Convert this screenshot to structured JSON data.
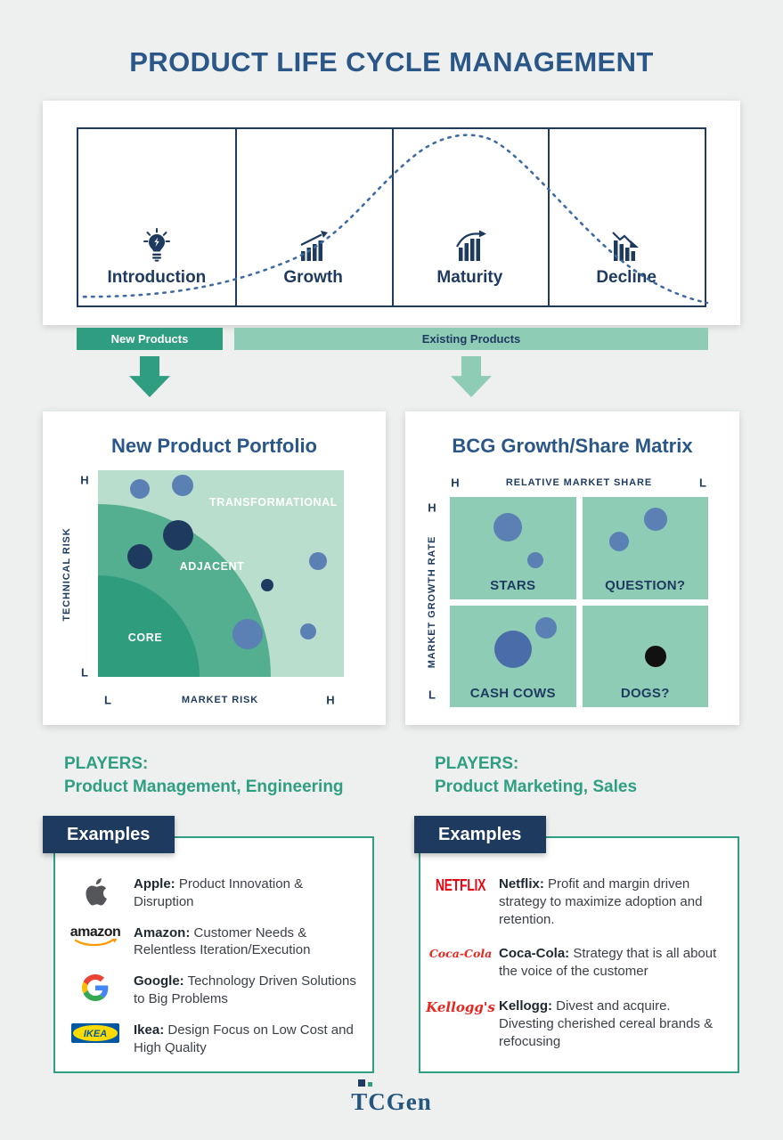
{
  "title": "PRODUCT LIFE CYCLE MANAGEMENT",
  "colors": {
    "title_blue": "#2a5788",
    "navy": "#1e3a5f",
    "teal_dark": "#2f9e80",
    "green_light": "#8fccb6",
    "bubble_blue": "#5b80b4",
    "players_teal": "#2f9e83",
    "netflix_red": "#e50914",
    "brand_red": "#e6261f"
  },
  "lifecycle": {
    "stages": [
      {
        "label": "Introduction"
      },
      {
        "label": "Growth"
      },
      {
        "label": "Maturity"
      },
      {
        "label": "Decline"
      }
    ],
    "bands": {
      "new": "New Products",
      "existing": "Existing Products"
    }
  },
  "portfolio": {
    "title": "New Product Portfolio",
    "zone_transformational": "TRANSFORMATIONAL",
    "zone_adjacent": "ADJACENT",
    "zone_core": "CORE",
    "y_axis": "TECHNICAL RISK",
    "x_axis": "MARKET RISK",
    "y_top": "H",
    "y_bottom": "L",
    "x_left": "L",
    "x_right": "H",
    "bubbles": [
      {
        "x": 17,
        "y": 9,
        "r": 11,
        "color": "#5b80b4"
      },
      {
        "x": 34.5,
        "y": 7.5,
        "r": 12,
        "color": "#5b80b4"
      },
      {
        "x": 32.5,
        "y": 31.5,
        "r": 17,
        "color": "#1f3a5f"
      },
      {
        "x": 17,
        "y": 42,
        "r": 14,
        "color": "#1f3a5f"
      },
      {
        "x": 89.5,
        "y": 44,
        "r": 10,
        "color": "#5b80b4"
      },
      {
        "x": 69,
        "y": 55.5,
        "r": 7,
        "color": "#1f3a5f"
      },
      {
        "x": 61,
        "y": 79.5,
        "r": 17,
        "color": "#5b80b4"
      },
      {
        "x": 85.5,
        "y": 78,
        "r": 9,
        "color": "#5b80b4"
      }
    ]
  },
  "bcg": {
    "title": "BCG Growth/Share Matrix",
    "top_axis": "RELATIVE MARKET SHARE",
    "left_axis": "MARKET GROWTH RATE",
    "top_left_mark": "H",
    "top_right_mark": "L",
    "left_top_mark": "H",
    "left_bottom_mark": "L",
    "quadrants": [
      {
        "label": "STARS",
        "bubbles": [
          {
            "x": 46,
            "y": 30,
            "r": 16,
            "color": "#5b80b4"
          },
          {
            "x": 68,
            "y": 62,
            "r": 9,
            "color": "#5b80b4"
          }
        ]
      },
      {
        "label": "QUESTION?",
        "bubbles": [
          {
            "x": 58,
            "y": 22,
            "r": 13,
            "color": "#5b80b4"
          },
          {
            "x": 29,
            "y": 44,
            "r": 11,
            "color": "#5b80b4"
          }
        ]
      },
      {
        "label": "CASH COWS",
        "bubbles": [
          {
            "x": 50,
            "y": 43,
            "r": 21,
            "color": "#4a6ca8"
          },
          {
            "x": 76,
            "y": 22,
            "r": 12,
            "color": "#5b80b4"
          }
        ]
      },
      {
        "label": "DOGS?",
        "bubbles": [
          {
            "x": 58,
            "y": 50,
            "r": 12,
            "color": "#111111"
          }
        ]
      }
    ]
  },
  "players": {
    "left": {
      "heading": "PLAYERS:",
      "line": "Product Management, Engineering"
    },
    "right": {
      "heading": "PLAYERS:",
      "line": "Product Marketing, Sales"
    }
  },
  "examples": {
    "left": {
      "header": "Examples",
      "items": [
        {
          "logo": "apple-logo",
          "brand": "Apple:",
          "text": "Product Innovation & Disruption"
        },
        {
          "logo": "amazon-logo",
          "logo_text": "amazon",
          "brand": "Amazon:",
          "text": "Customer Needs & Relentless Iteration/Execution"
        },
        {
          "logo": "google-logo",
          "brand": "Google:",
          "text": "Technology Driven Solutions to Big Problems"
        },
        {
          "logo": "ikea-logo",
          "logo_text": "IKEA",
          "brand": "Ikea:",
          "text": "Design Focus on Low Cost and High Quality"
        }
      ]
    },
    "right": {
      "header": "Examples",
      "items": [
        {
          "logo": "netflix-logo",
          "logo_text": "NETFLIX",
          "brand": "Netflix:",
          "text": "Profit and margin driven strategy to maximize adoption and retention."
        },
        {
          "logo": "coca-cola-logo",
          "logo_text": "Coca-Cola",
          "brand": "Coca-Cola:",
          "text": "Strategy that is all about the voice of the customer"
        },
        {
          "logo": "kelloggs-logo",
          "logo_text": "Kellogg's",
          "brand": "Kellogg:",
          "text": "Divest and acquire. Divesting cherished cereal brands & refocusing"
        }
      ]
    }
  },
  "footer": {
    "logo": "TCGen"
  }
}
